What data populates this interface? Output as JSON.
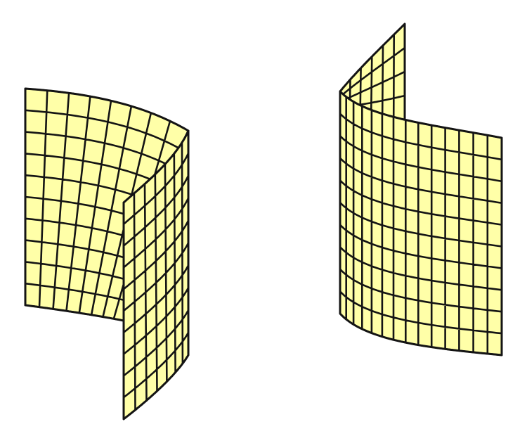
{
  "figure": {
    "type": "3d-surface-illustration",
    "colors": {
      "face": "#ffffa8",
      "line": "#141414",
      "background": "#ffffff"
    },
    "surfaces": [
      {
        "name": "left-curved-sheet",
        "shape": "cylindrical sheet curving behind itself, open toward viewer",
        "grid_columns": 14,
        "grid_rows": 10
      },
      {
        "name": "right-curved-sheet",
        "shape": "cylindrical sheet curving back, mirror form",
        "grid_columns": 14,
        "grid_rows": 10
      }
    ]
  }
}
